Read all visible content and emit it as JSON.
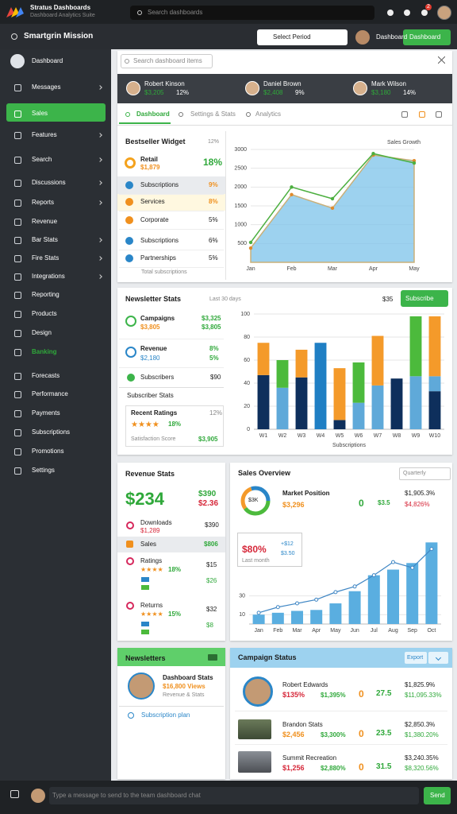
{
  "app": {
    "title": "Stratus Dashboards",
    "subtitle": "Dashboard Analytics Suite",
    "search": "Search dashboards",
    "badge": "2"
  },
  "header": {
    "title": "Smartgrin Mission",
    "dropdown": "Select Period",
    "user": "Dashboard",
    "button": "Dashboard"
  },
  "sidebar": {
    "items": [
      "Dashboard",
      "Messages",
      "Sales",
      "Features",
      "Search",
      "Discussions",
      "Reports",
      "Revenue",
      "Bar Stats",
      "Fire Stats",
      "Integrations",
      "Reporting",
      "Products",
      "Design",
      "Banking",
      "Forecasts",
      "Performance",
      "Payments",
      "Subscriptions",
      "Promotions",
      "Settings"
    ]
  },
  "overview": {
    "search": "Search dashboard items",
    "profiles": [
      {
        "name": "Robert Kinson",
        "value": "$3,205",
        "change": "12%"
      },
      {
        "name": "Daniel Brown",
        "value": "$2,408",
        "change": "9%"
      },
      {
        "name": "Mark Wilson",
        "value": "$3,180",
        "change": "14%"
      }
    ],
    "tabs": [
      "Dashboard",
      "Settings & Stats",
      "Analytics"
    ]
  },
  "bestseller": {
    "title": "Bestseller Widget",
    "badge": "12%",
    "rows": [
      {
        "label": "Retail",
        "value": "$1,879",
        "change": "18%"
      },
      {
        "label": "Subscriptions",
        "change": "9%"
      },
      {
        "label": "Services",
        "change": "8%"
      },
      {
        "label": "Corporate",
        "change": "5%"
      },
      {
        "label": "Subscriptions",
        "change": "6%"
      },
      {
        "label": "Partnerships",
        "change": "5%"
      }
    ],
    "footer": "Total subscriptions"
  },
  "sales_chart": {
    "type": "area",
    "title": "Sales Growth",
    "categories": [
      "Jan",
      "Feb",
      "Mar",
      "Apr",
      "May"
    ],
    "series": [
      {
        "color": "#7cc3ea",
        "values": [
          380,
          1800,
          1440,
          2850,
          2700
        ]
      },
      {
        "color": "#4caf3f",
        "values": [
          530,
          2000,
          1690,
          2890,
          2640
        ]
      }
    ],
    "ylim": [
      0,
      3000
    ],
    "yticks": [
      500,
      1000,
      1500,
      2000,
      2500,
      3000
    ],
    "grid": true
  },
  "newsletter": {
    "title": "Newsletter Stats",
    "period": "Last 30 days",
    "amount": "$35",
    "button": "Subscribe",
    "rows": [
      {
        "label": "Campaigns",
        "value": "$3,805",
        "right": "$3,325",
        "right2": "$3,805"
      },
      {
        "label": "Revenue",
        "value": "$2,180",
        "right": "8%",
        "right2": "5%"
      },
      {
        "label": "Subscribers",
        "right": "$90"
      }
    ],
    "section": "Subscriber Stats",
    "ratings": {
      "title": "Recent Ratings",
      "change": "12%",
      "stars": "★★★★",
      "score": "18%",
      "footer": "Satisfaction Score",
      "total": "$3,905"
    }
  },
  "subscriptions_chart": {
    "type": "bar",
    "stacked": true,
    "title": "Subscriptions",
    "categories": [
      "W1",
      "W2",
      "W3",
      "W4",
      "W5",
      "W6",
      "W7",
      "W8",
      "W9",
      "W10"
    ],
    "series": [
      {
        "color": "#0e2f5c",
        "values": [
          47,
          0,
          45,
          0,
          8,
          0,
          0,
          44,
          0,
          33
        ]
      },
      {
        "color": "#5fa9d9",
        "values": [
          0,
          36,
          0,
          0,
          0,
          23,
          38,
          0,
          46,
          13
        ]
      },
      {
        "color": "#1f7fc4",
        "values": [
          0,
          0,
          0,
          75,
          0,
          0,
          0,
          0,
          0,
          0
        ]
      },
      {
        "color": "#f49a2a",
        "values": [
          28,
          0,
          24,
          0,
          45,
          0,
          43,
          0,
          0,
          52
        ]
      },
      {
        "color": "#4cba3c",
        "values": [
          0,
          24,
          0,
          0,
          0,
          35,
          0,
          0,
          52,
          0
        ]
      }
    ],
    "ylim": [
      0,
      100
    ],
    "yticks": [
      0,
      20,
      40,
      60,
      80,
      100
    ],
    "grid": true
  },
  "revenue": {
    "title": "Revenue Stats",
    "total": "$234",
    "right": "$390",
    "right2": "$2.36",
    "rows": [
      {
        "label": "Downloads",
        "value": "$1,289",
        "right": "$390"
      },
      {
        "label": "Sales",
        "right": "$806"
      },
      {
        "label": "Ratings",
        "stars": "★★★★",
        "score": "18%",
        "right": "$15",
        "right2": "$26"
      },
      {
        "label": "Returns",
        "stars": "★★★★",
        "score": "15%",
        "right": "$32",
        "right2": "$8"
      }
    ]
  },
  "sales_overview": {
    "title": "Sales Overview",
    "dropdown": "Quarterly",
    "donut_label": "$3K",
    "metric": "Market Position",
    "metric_value": "$3,296",
    "count": "0",
    "ratio": "$3.5",
    "top": "$1,905.3%",
    "bottom": "$4,826%",
    "tooltip": {
      "value": "$80%",
      "delta": "+$12",
      "amount": "$3.50",
      "note": "Last month"
    }
  },
  "revenue_chart": {
    "type": "combo",
    "categories": [
      "Jan",
      "Feb",
      "Mar",
      "Apr",
      "May",
      "Jun",
      "Jul",
      "Aug",
      "Sep",
      "Oct"
    ],
    "series": [
      {
        "type": "bar",
        "color": "#5aaee0",
        "values": [
          10,
          12,
          14,
          15,
          22,
          35,
          52,
          58,
          65,
          87
        ]
      },
      {
        "type": "line",
        "color": "#3f86c4",
        "values": [
          12,
          18,
          22,
          26,
          34,
          40,
          52,
          66,
          60,
          80
        ]
      }
    ],
    "ylim": [
      0,
      100
    ],
    "yticks": [
      10,
      30
    ],
    "grid": true
  },
  "newsletters": {
    "title": "Newsletters",
    "name": "Dashboard Stats",
    "views": "$16,800 Views",
    "note": "Revenue & Stats",
    "link": "Subscription plan"
  },
  "campaigns": {
    "title": "Campaign Status",
    "button": "Export",
    "rows": [
      {
        "name": "Robert Edwards",
        "value": "$135%",
        "change": "$1,395%",
        "count": "0",
        "score": "27.5",
        "top": "$1,825.9%",
        "bottom": "$11,095.33%"
      },
      {
        "name": "Brandon Stats",
        "value": "$2,456",
        "change": "$3,300%",
        "count": "0",
        "score": "23.5",
        "top": "$2,850.3%",
        "bottom": "$1,380.20%"
      },
      {
        "name": "Summit Recreation",
        "value": "$1,256",
        "change": "$2,880%",
        "count": "0",
        "score": "31.5",
        "top": "$3,240.35%",
        "bottom": "$8,320.56%"
      }
    ]
  },
  "chat": {
    "placeholder": "Type a message to send to the team dashboard chat",
    "button": "Send"
  }
}
